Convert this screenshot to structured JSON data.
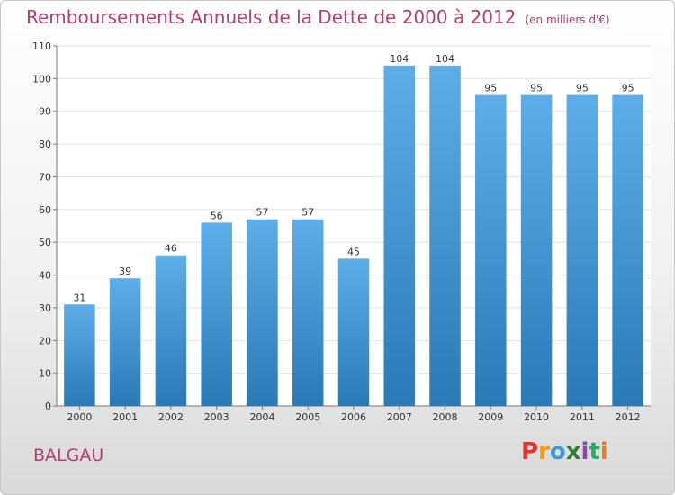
{
  "header": {
    "title": "Remboursements Annuels de la Dette de 2000 à 2012",
    "unit": "(en milliers d'€)"
  },
  "commune": "BALGAU",
  "logo": {
    "text": "Proxiti",
    "letters": [
      "P",
      "r",
      "o",
      "x",
      "i",
      "t",
      "i"
    ],
    "colors": [
      "#e8312f",
      "#f39c12",
      "#3b9ad9",
      "#2e7d32",
      "#8e44ad",
      "#27ae60",
      "#e67e22"
    ]
  },
  "colors": {
    "bar_top": "#5dade8",
    "bar_bottom": "#2a7ab8",
    "title": "#b0406f"
  },
  "chart_data": {
    "type": "bar",
    "title": "Remboursements Annuels de la Dette de 2000 à 2012",
    "categories": [
      "2000",
      "2001",
      "2002",
      "2003",
      "2004",
      "2005",
      "2006",
      "2007",
      "2008",
      "2009",
      "2010",
      "2011",
      "2012"
    ],
    "values": [
      31,
      39,
      46,
      56,
      57,
      57,
      45,
      104,
      104,
      95,
      95,
      95,
      95
    ],
    "ylim": [
      0,
      110
    ],
    "yticks": [
      0,
      10,
      20,
      30,
      40,
      50,
      60,
      70,
      80,
      90,
      100,
      110
    ],
    "grid": true
  }
}
